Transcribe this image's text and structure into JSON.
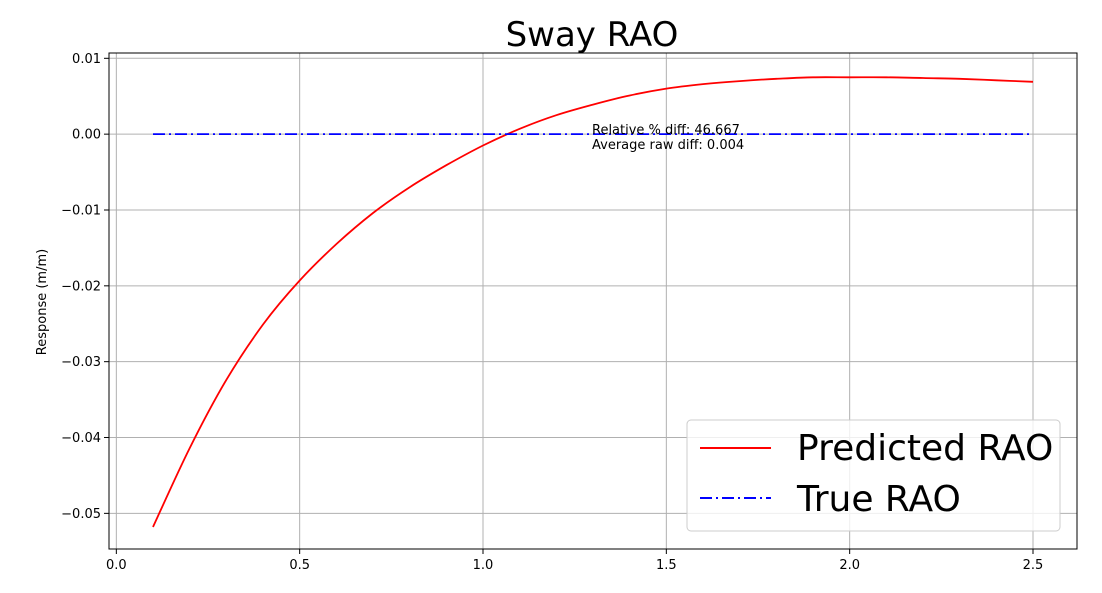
{
  "chart_data": {
    "type": "line",
    "title": "Sway RAO",
    "xlabel": "",
    "ylabel": "Response (m/m)",
    "xlim": [
      -0.02,
      2.62
    ],
    "ylim": [
      -0.0547,
      0.0107
    ],
    "xticks": [
      0.0,
      0.5,
      1.0,
      1.5,
      2.0,
      2.5
    ],
    "xtick_labels": [
      "0.0",
      "0.5",
      "1.0",
      "1.5",
      "2.0",
      "2.5"
    ],
    "yticks": [
      0.01,
      0.0,
      -0.01,
      -0.02,
      -0.03,
      -0.04,
      -0.05
    ],
    "ytick_labels": [
      "0.01",
      "0.00",
      "−0.01",
      "−0.02",
      "−0.03",
      "−0.04",
      "−0.05"
    ],
    "grid": true,
    "legend_position": "bottom-right",
    "series": [
      {
        "name": "Predicted RAO",
        "color": "#ff0000",
        "style": "solid",
        "x": [
          0.1,
          0.2,
          0.3,
          0.4,
          0.5,
          0.6,
          0.7,
          0.8,
          0.9,
          1.0,
          1.1,
          1.2,
          1.3,
          1.4,
          1.5,
          1.6,
          1.7,
          1.8,
          1.9,
          2.0,
          2.1,
          2.2,
          2.3,
          2.4,
          2.5
        ],
        "y": [
          -0.0518,
          -0.0414,
          -0.0324,
          -0.0251,
          -0.0193,
          -0.0145,
          -0.0104,
          -0.007,
          -0.0041,
          -0.0015,
          0.0007,
          0.0025,
          0.0039,
          0.0051,
          0.006,
          0.0066,
          0.007,
          0.0073,
          0.0075,
          0.0075,
          0.0075,
          0.0074,
          0.0073,
          0.0071,
          0.0069
        ]
      },
      {
        "name": "True RAO",
        "color": "#0000ff",
        "style": "dashdot",
        "x": [
          0.1,
          2.5
        ],
        "y": [
          0.0,
          0.0
        ]
      }
    ],
    "annotations": [
      "Relative % diff: 46.667",
      "Average raw diff: 0.004"
    ]
  }
}
